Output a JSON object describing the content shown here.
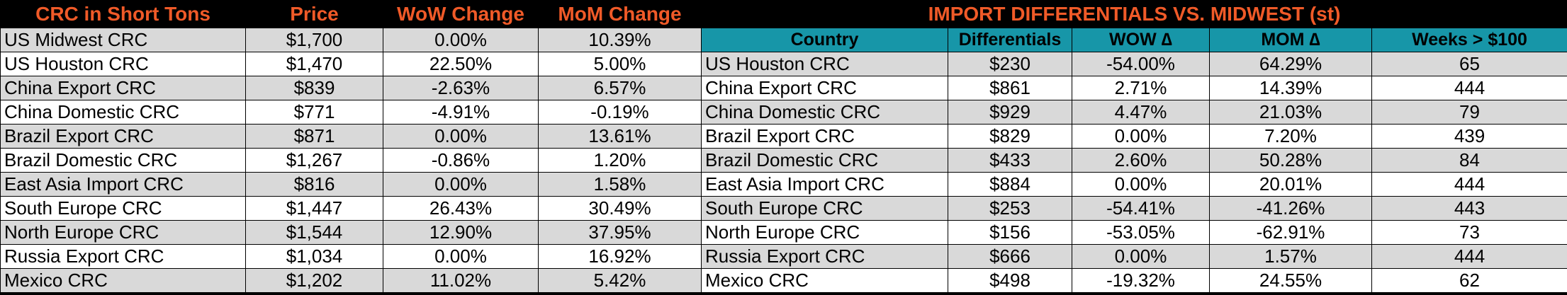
{
  "left": {
    "headers": [
      "CRC in Short Tons",
      "Price",
      "WoW Change",
      "MoM Change"
    ],
    "rows": [
      {
        "name": "US Midwest CRC",
        "price": "$1,700",
        "wow": "0.00%",
        "mom": "10.39%"
      },
      {
        "name": "US Houston CRC",
        "price": "$1,470",
        "wow": "22.50%",
        "mom": "5.00%"
      },
      {
        "name": "China Export CRC",
        "price": "$839",
        "wow": "-2.63%",
        "mom": "6.57%"
      },
      {
        "name": "China Domestic CRC",
        "price": "$771",
        "wow": "-4.91%",
        "mom": "-0.19%"
      },
      {
        "name": "Brazil Export CRC",
        "price": "$871",
        "wow": "0.00%",
        "mom": "13.61%"
      },
      {
        "name": "Brazil Domestic CRC",
        "price": "$1,267",
        "wow": "-0.86%",
        "mom": "1.20%"
      },
      {
        "name": "East Asia Import CRC",
        "price": "$816",
        "wow": "0.00%",
        "mom": "1.58%"
      },
      {
        "name": "South Europe CRC",
        "price": "$1,447",
        "wow": "26.43%",
        "mom": "30.49%"
      },
      {
        "name": "North Europe CRC",
        "price": "$1,544",
        "wow": "12.90%",
        "mom": "37.95%"
      },
      {
        "name": "Russia Export CRC",
        "price": "$1,034",
        "wow": "0.00%",
        "mom": "16.92%"
      },
      {
        "name": "Mexico CRC",
        "price": "$1,202",
        "wow": "11.02%",
        "mom": "5.42%"
      }
    ]
  },
  "right": {
    "title": "IMPORT DIFFERENTIALS VS. MIDWEST (st)",
    "headers": [
      "Country",
      "Differentials",
      "WOW ∆",
      "MOM ∆",
      "Weeks > $100"
    ],
    "rows": [
      {
        "name": "US Houston CRC",
        "diff": "$230",
        "wow": "-54.00%",
        "mom": "64.29%",
        "weeks": "65"
      },
      {
        "name": "China Export CRC",
        "diff": "$861",
        "wow": "2.71%",
        "mom": "14.39%",
        "weeks": "444"
      },
      {
        "name": "China Domestic CRC",
        "diff": "$929",
        "wow": "4.47%",
        "mom": "21.03%",
        "weeks": "79"
      },
      {
        "name": "Brazil Export CRC",
        "diff": "$829",
        "wow": "0.00%",
        "mom": "7.20%",
        "weeks": "439"
      },
      {
        "name": "Brazil Domestic CRC",
        "diff": "$433",
        "wow": "2.60%",
        "mom": "50.28%",
        "weeks": "84"
      },
      {
        "name": "East Asia Import CRC",
        "diff": "$884",
        "wow": "0.00%",
        "mom": "20.01%",
        "weeks": "444"
      },
      {
        "name": "South Europe CRC",
        "diff": "$253",
        "wow": "-54.41%",
        "mom": "-41.26%",
        "weeks": "443"
      },
      {
        "name": "North Europe CRC",
        "diff": "$156",
        "wow": "-53.05%",
        "mom": "-62.91%",
        "weeks": "73"
      },
      {
        "name": "Russia Export CRC",
        "diff": "$666",
        "wow": "0.00%",
        "mom": "1.57%",
        "weeks": "444"
      },
      {
        "name": "Mexico CRC",
        "diff": "$498",
        "wow": "-19.32%",
        "mom": "24.55%",
        "weeks": "62"
      }
    ]
  },
  "colors": {
    "header_text": "#f05a28",
    "header_bg": "#000000",
    "subheader_bg": "#1796a8",
    "row_shaded": "#d9d9d9",
    "row_plain": "#ffffff"
  }
}
